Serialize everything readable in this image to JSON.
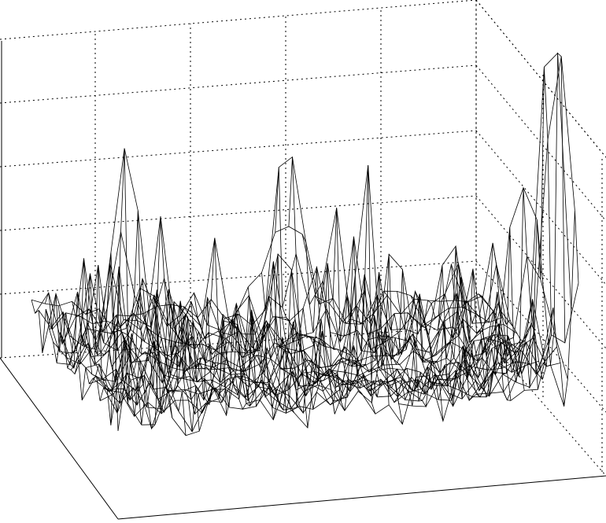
{
  "chart_data": {
    "type": "surface",
    "title": "",
    "xlabel": "",
    "ylabel": "",
    "zlabel": "",
    "grid": true,
    "mesh_color": "#000000",
    "background": "#ffffff",
    "z_range": [
      0,
      1
    ],
    "grid_rows": 24,
    "grid_cols": 34,
    "description_peaks": [
      {
        "x": 0.92,
        "y": 0.95,
        "z": 1.0
      },
      {
        "x": 0.96,
        "y": 0.97,
        "z": 0.95
      },
      {
        "x": 0.84,
        "y": 0.92,
        "z": 0.7
      },
      {
        "x": 0.03,
        "y": 0.55,
        "z": 0.72
      },
      {
        "x": 0.28,
        "y": 0.15,
        "z": 0.85
      },
      {
        "x": 0.9,
        "y": 0.55,
        "z": 0.55
      },
      {
        "x": 0.5,
        "y": 0.45,
        "z": 0.45
      }
    ]
  }
}
